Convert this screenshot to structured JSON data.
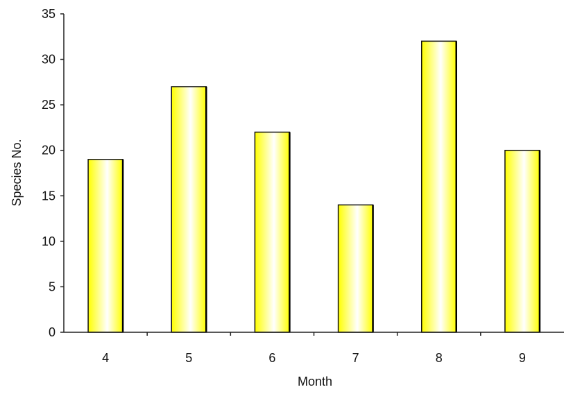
{
  "chart_data": {
    "type": "bar",
    "categories": [
      "4",
      "5",
      "6",
      "7",
      "8",
      "9"
    ],
    "values": [
      19,
      27,
      22,
      14,
      32,
      20
    ],
    "xlabel": "Month",
    "ylabel": "Species No.",
    "ylim": [
      0,
      35
    ],
    "yticks": [
      0,
      5,
      10,
      15,
      20,
      25,
      30,
      35
    ],
    "grid": false,
    "legend": "none",
    "colors": {
      "bar_edge": "#ffff00",
      "bar_center": "#ffffff",
      "bar_outline": "#111111",
      "axis": "#222222"
    }
  }
}
